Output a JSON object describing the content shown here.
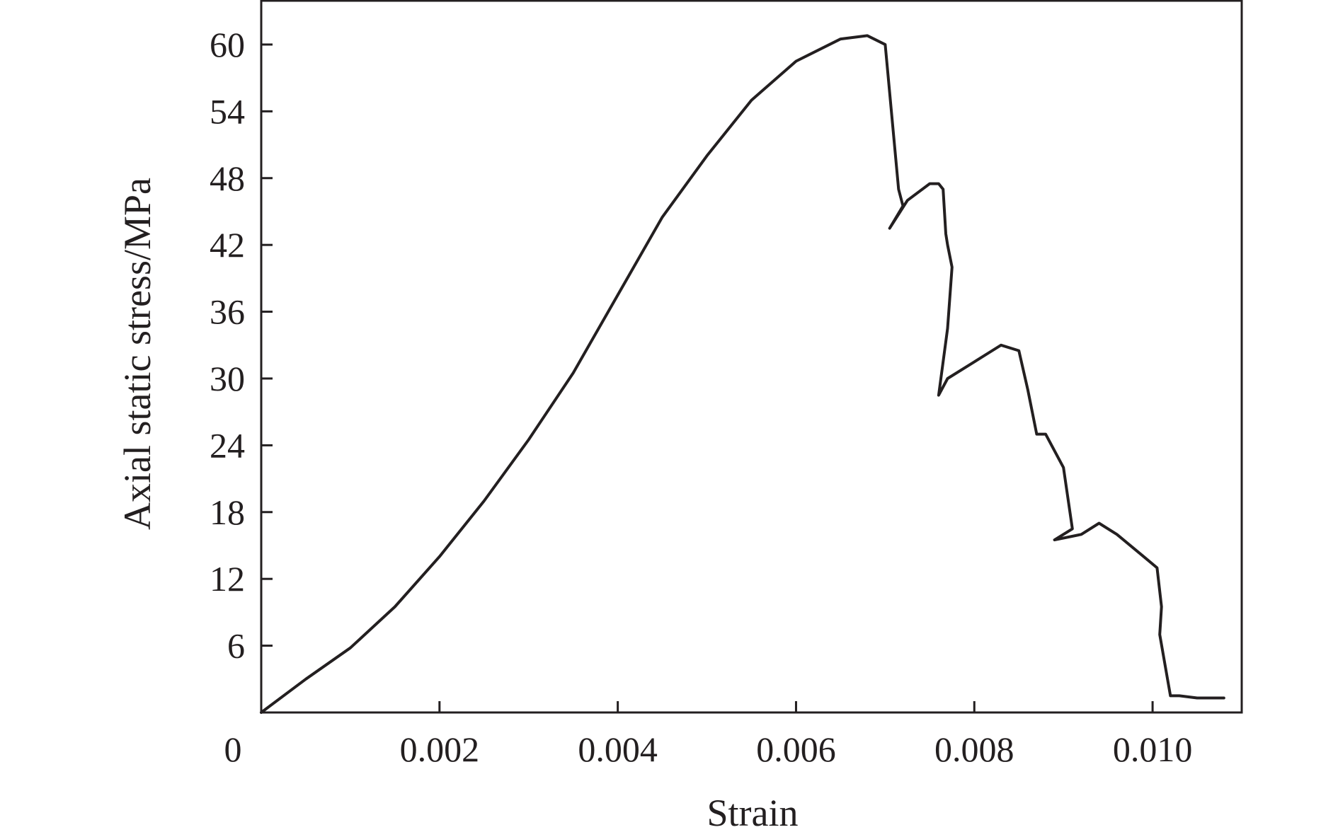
{
  "chart_data": {
    "type": "line",
    "title": "",
    "xlabel": "Strain",
    "ylabel": "Axial static stress/MPa",
    "xlim": [
      0,
      0.011
    ],
    "ylim": [
      0,
      64
    ],
    "x_ticks": [
      {
        "value": 0,
        "label": "0"
      },
      {
        "value": 0.002,
        "label": "0.002"
      },
      {
        "value": 0.004,
        "label": "0.004"
      },
      {
        "value": 0.006,
        "label": "0.006"
      },
      {
        "value": 0.008,
        "label": "0.008"
      },
      {
        "value": 0.01,
        "label": "0.010"
      }
    ],
    "y_ticks": [
      {
        "value": 6,
        "label": "6"
      },
      {
        "value": 12,
        "label": "12"
      },
      {
        "value": 18,
        "label": "18"
      },
      {
        "value": 24,
        "label": "24"
      },
      {
        "value": 30,
        "label": "30"
      },
      {
        "value": 36,
        "label": "36"
      },
      {
        "value": 42,
        "label": "42"
      },
      {
        "value": 48,
        "label": "48"
      },
      {
        "value": 54,
        "label": "54"
      },
      {
        "value": 60,
        "label": "60"
      }
    ],
    "grid": false,
    "legend": "none",
    "line_color": "#231f20",
    "series": [
      {
        "x": [
          0,
          0.0005,
          0.001,
          0.0015,
          0.002,
          0.0025,
          0.003,
          0.0035,
          0.004,
          0.0045,
          0.005,
          0.0055,
          0.006,
          0.0065,
          0.0068,
          0.007,
          0.00715,
          0.0072,
          0.00705,
          0.00725,
          0.0075,
          0.0076,
          0.00765,
          0.00768,
          0.0077,
          0.00775,
          0.0077,
          0.0076,
          0.0077,
          0.008,
          0.0083,
          0.0085,
          0.0086,
          0.0087,
          0.0088,
          0.009,
          0.0091,
          0.0089,
          0.0092,
          0.0094,
          0.0096,
          0.0099,
          0.01005,
          0.0101,
          0.01008,
          0.0102,
          0.0103,
          0.0105,
          0.0108
        ],
        "y": [
          0,
          3,
          5.8,
          9.5,
          14,
          19,
          24.5,
          30.5,
          37.5,
          44.5,
          50,
          55,
          58.5,
          60.5,
          60.8,
          60,
          47,
          45.5,
          43.5,
          46,
          47.5,
          47.5,
          47,
          43,
          42,
          40,
          34.5,
          28.5,
          30,
          31.5,
          33,
          32.5,
          29,
          25,
          25,
          22,
          16.5,
          15.5,
          16,
          17,
          16,
          14,
          13,
          9.5,
          7,
          1.5,
          1.5,
          1.3,
          1.3
        ]
      }
    ]
  }
}
